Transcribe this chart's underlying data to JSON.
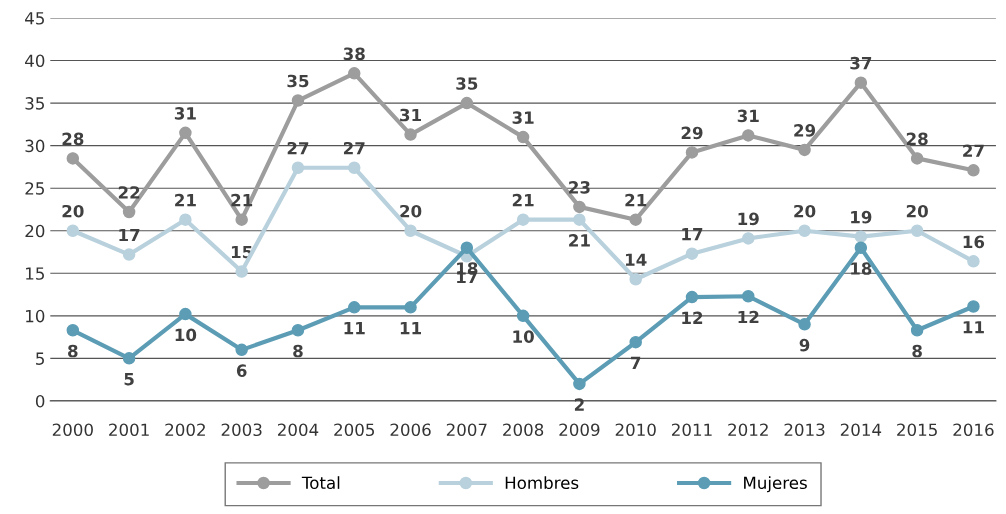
{
  "chart_data": {
    "type": "line",
    "categories": [
      "2000",
      "2001",
      "2002",
      "2003",
      "2004",
      "2005",
      "2006",
      "2007",
      "2008",
      "2009",
      "2010",
      "2011",
      "2012",
      "2013",
      "2014",
      "2015",
      "2016"
    ],
    "series": [
      {
        "name": "Total",
        "color": "#9d9d9d",
        "values": [
          28.5,
          22.2,
          31.5,
          21.3,
          35.3,
          38.5,
          31.3,
          35,
          31,
          22.8,
          21.3,
          29.2,
          31.2,
          29.5,
          37.4,
          28.5,
          27.1
        ],
        "value_labels": [
          "28",
          "22",
          "31",
          "21",
          "35",
          "38",
          "31",
          "35",
          "31",
          "23",
          "21",
          "29",
          "31",
          "29",
          "37",
          "28",
          "27"
        ]
      },
      {
        "name": "Hombres",
        "color": "#b8d1dd",
        "values": [
          20,
          17.2,
          21.3,
          15.2,
          27.4,
          27.4,
          20,
          17,
          21.3,
          21.3,
          14.3,
          17.3,
          19.1,
          20,
          19.3,
          20,
          16.4
        ],
        "value_labels": [
          "20",
          "17",
          "21",
          "15",
          "27",
          "27",
          "20",
          "17",
          "21",
          "21",
          "14",
          "17",
          "19",
          "20",
          "19",
          "20",
          "16"
        ]
      },
      {
        "name": "Mujeres",
        "color": "#5c9db5",
        "values": [
          8.3,
          5,
          10.2,
          6,
          8.3,
          11,
          11,
          18,
          10,
          2,
          6.9,
          12.2,
          12.3,
          9,
          18,
          8.3,
          11.1
        ],
        "value_labels": [
          "8",
          "5",
          "10",
          "6",
          "8",
          "11",
          "11",
          "18",
          "10",
          "2",
          "7",
          "12",
          "12",
          "9",
          "18",
          "8",
          "11"
        ]
      }
    ],
    "ylim": [
      0,
      45
    ],
    "yticks": [
      0,
      5,
      10,
      15,
      20,
      25,
      30,
      35,
      40,
      45
    ],
    "grid": "y",
    "legend": "bottom",
    "marker": "circle",
    "line_style": "solid"
  }
}
